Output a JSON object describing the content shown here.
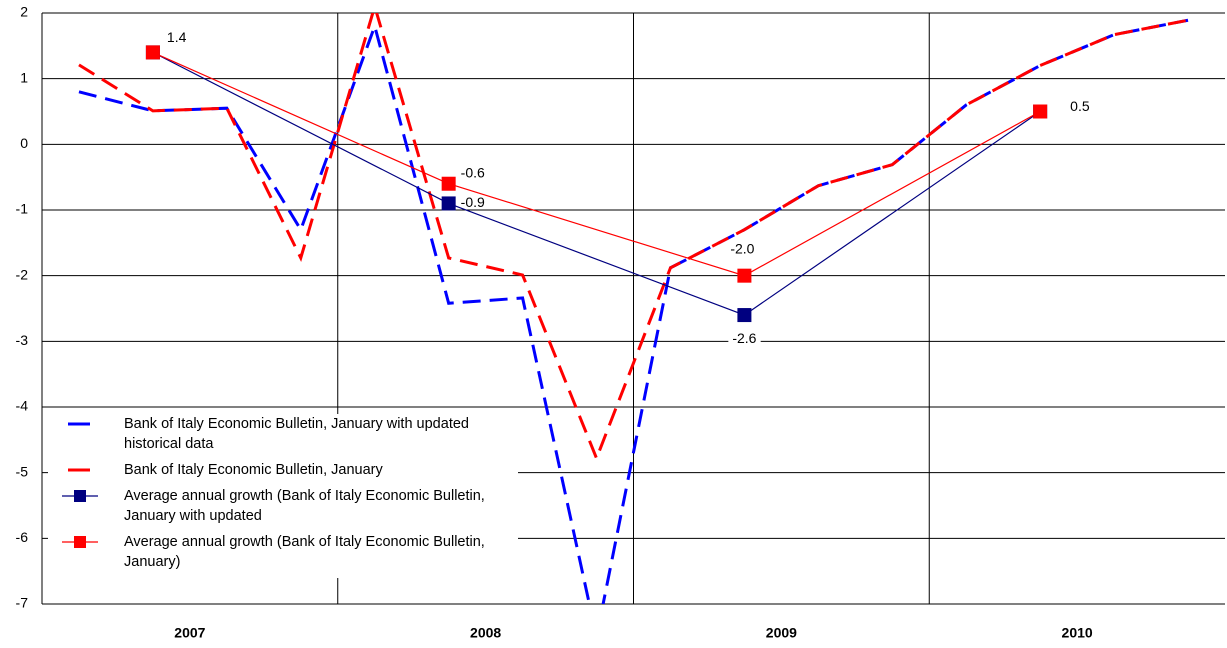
{
  "chart_data": {
    "type": "line",
    "x": [
      2007.125,
      2007.375,
      2007.625,
      2007.875,
      2008.125,
      2008.375,
      2008.625,
      2008.875,
      2009.125,
      2009.375,
      2009.625,
      2009.875,
      2010.125,
      2010.375,
      2010.625,
      2010.875
    ],
    "series": [
      {
        "name": "Bank of Italy Economic Bulletin, January with updated historical data",
        "color": "#0000ff",
        "style": "dashed",
        "values": [
          0.8,
          0.51,
          0.55,
          -1.3,
          1.8,
          -2.42,
          -2.34,
          -7.5,
          -1.88,
          -1.3,
          -0.63,
          -0.31,
          0.6,
          1.2,
          1.67,
          1.89
        ]
      },
      {
        "name": "Bank of Italy Economic Bulletin, January",
        "color": "#ff0000",
        "style": "dashed",
        "values": [
          1.21,
          0.51,
          0.55,
          -1.73,
          2.1,
          -1.73,
          -1.99,
          -4.78,
          -1.88,
          -1.3,
          -0.63,
          -0.31,
          0.6,
          1.2,
          1.67,
          1.89
        ]
      },
      {
        "name": "Average annual growth (Bank of Italy Economic Bulletin, January with updated",
        "color": "#000080",
        "style": "markers",
        "x": [
          2007.375,
          2008.375,
          2009.375,
          2010.375
        ],
        "values": [
          1.4,
          -0.9,
          -2.6,
          0.5
        ],
        "value_labels": [
          null,
          "-0.9",
          "-2.6",
          null
        ]
      },
      {
        "name": "Average annual growth (Bank of Italy Economic Bulletin, January)",
        "color": "#ff0000",
        "style": "markers",
        "x": [
          2007.375,
          2008.375,
          2009.375,
          2010.375
        ],
        "values": [
          1.4,
          -0.6,
          -2.0,
          0.5
        ],
        "value_labels": [
          "1.4",
          "-0.6",
          "-2.0",
          "0.5"
        ]
      }
    ],
    "xlim": [
      2007,
      2011
    ],
    "xticks": [
      {
        "value": 2007.5,
        "label": "2007"
      },
      {
        "value": 2008.5,
        "label": "2008"
      },
      {
        "value": 2009.5,
        "label": "2009"
      },
      {
        "value": 2010.5,
        "label": "2010"
      }
    ],
    "ylim": [
      -7,
      2
    ],
    "yticks": [
      -7,
      -6,
      -5,
      -4,
      -3,
      -2,
      -1,
      0,
      1,
      2
    ],
    "grid": true
  }
}
